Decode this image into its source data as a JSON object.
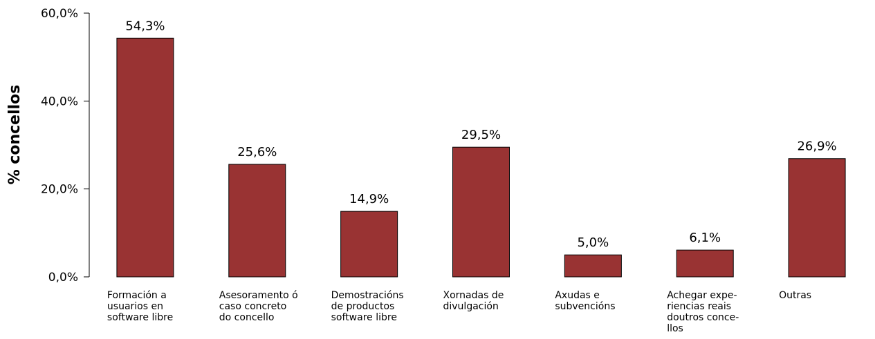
{
  "chart_data": {
    "type": "bar",
    "ylabel": "% concellos",
    "xlabel": "",
    "title": "",
    "ylim": [
      0,
      60
    ],
    "yticks": [
      0,
      20,
      40,
      60
    ],
    "ytick_labels": [
      "0,0%",
      "20,0%",
      "40,0%",
      "60,0%"
    ],
    "grid": false,
    "bar_color": "#993333",
    "categories": [
      [
        "Formación a",
        "usuarios en",
        "software libre"
      ],
      [
        "Asesoramento ó",
        "caso concreto",
        "do concello"
      ],
      [
        "Demostracións",
        "de productos",
        "software libre"
      ],
      [
        "Xornadas de",
        "divulgación"
      ],
      [
        "Axudas e",
        "subvencións"
      ],
      [
        "Achegar expe-",
        "riencias reais",
        "doutros conce-",
        "llos"
      ],
      [
        "Outras"
      ]
    ],
    "values": [
      54.3,
      25.6,
      14.9,
      29.5,
      5.0,
      6.1,
      26.9
    ],
    "value_labels": [
      "54,3%",
      "25,6%",
      "14,9%",
      "29,5%",
      "5,0%",
      "6,1%",
      "26,9%"
    ]
  }
}
